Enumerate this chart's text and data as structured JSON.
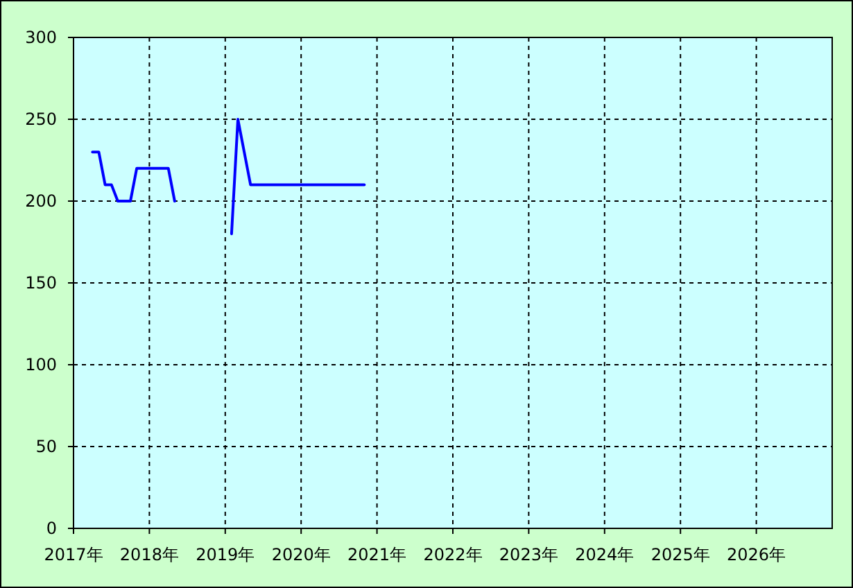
{
  "chart_data": {
    "type": "line",
    "series": [
      {
        "color": "#0000ff",
        "x": [
          "2017-04",
          "2017-05",
          "2017-06",
          "2017-07",
          "2017-08",
          "2017-10",
          "2017-11",
          "2018-04",
          "2018-05"
        ],
        "values": [
          230,
          230,
          210,
          210,
          200,
          200,
          220,
          220,
          200
        ]
      },
      {
        "color": "#0000ff",
        "x": [
          "2019-02",
          "2019-03",
          "2019-04",
          "2019-05",
          "2020-11"
        ],
        "values": [
          180,
          250,
          230,
          210,
          210
        ]
      }
    ],
    "xlim": [
      "2017",
      "2027"
    ],
    "xticks": [
      {
        "value": "2017",
        "label": "2017年"
      },
      {
        "value": "2018",
        "label": "2018年"
      },
      {
        "value": "2019",
        "label": "2019年"
      },
      {
        "value": "2020",
        "label": "2020年"
      },
      {
        "value": "2021",
        "label": "2021年"
      },
      {
        "value": "2022",
        "label": "2022年"
      },
      {
        "value": "2023",
        "label": "2023年"
      },
      {
        "value": "2024",
        "label": "2024年"
      },
      {
        "value": "2025",
        "label": "2025年"
      },
      {
        "value": "2026",
        "label": "2026年"
      }
    ],
    "ylim": [
      0,
      300
    ],
    "yticks": [
      0,
      50,
      100,
      150,
      200,
      250,
      300
    ],
    "grid": true
  }
}
